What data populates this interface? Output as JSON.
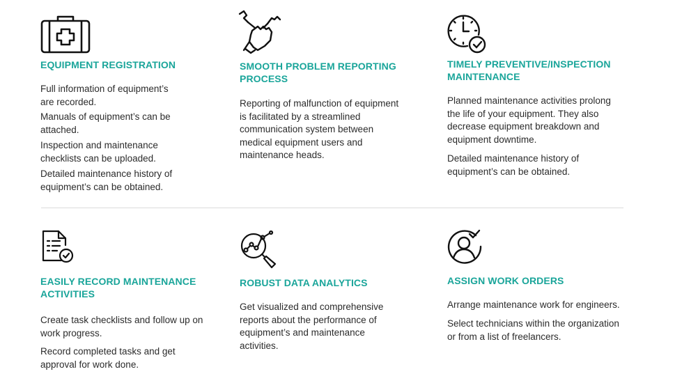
{
  "features": [
    {
      "icon": "first-aid-kit-icon",
      "title": "EQUIPMENT REGISTRATION",
      "paragraphs": [
        "Full information of equipment’s are recorded.",
        "Manuals of equipment’s can be attached.",
        "Inspection and maintenance checklists can be uploaded.",
        "Detailed maintenance history of equipment’s can be obtained."
      ]
    },
    {
      "icon": "hand-wrench-icon",
      "title": "SMOOTH PROBLEM REPORTING PROCESS",
      "paragraphs": [
        "Reporting of malfunction of equipment is facilitated by a streamlined communication system between medical equipment users and maintenance heads."
      ]
    },
    {
      "icon": "clock-check-icon",
      "title": "TIMELY PREVENTIVE/INSPECTION MAINTENANCE",
      "paragraphs": [
        "Planned maintenance activities prolong the life of your equipment. They also decrease equipment breakdown and equipment downtime.",
        "Detailed maintenance history of equipment’s can be obtained."
      ]
    },
    {
      "icon": "checklist-document-icon",
      "title": "EASILY RECORD MAINTENANCE ACTIVITIES",
      "paragraphs": [
        "Create task checklists and follow up on work progress.",
        "Record completed tasks and get approval for work done."
      ]
    },
    {
      "icon": "magnifier-analytics-icon",
      "title": "ROBUST DATA ANALYTICS",
      "paragraphs": [
        "Get visualized and comprehensive reports about the performance of equipment’s and maintenance activities."
      ]
    },
    {
      "icon": "user-check-icon",
      "title": "ASSIGN WORK ORDERS",
      "paragraphs": [
        "Arrange maintenance work for engineers.",
        "Select technicians within the organization or from a list of freelancers."
      ]
    }
  ]
}
